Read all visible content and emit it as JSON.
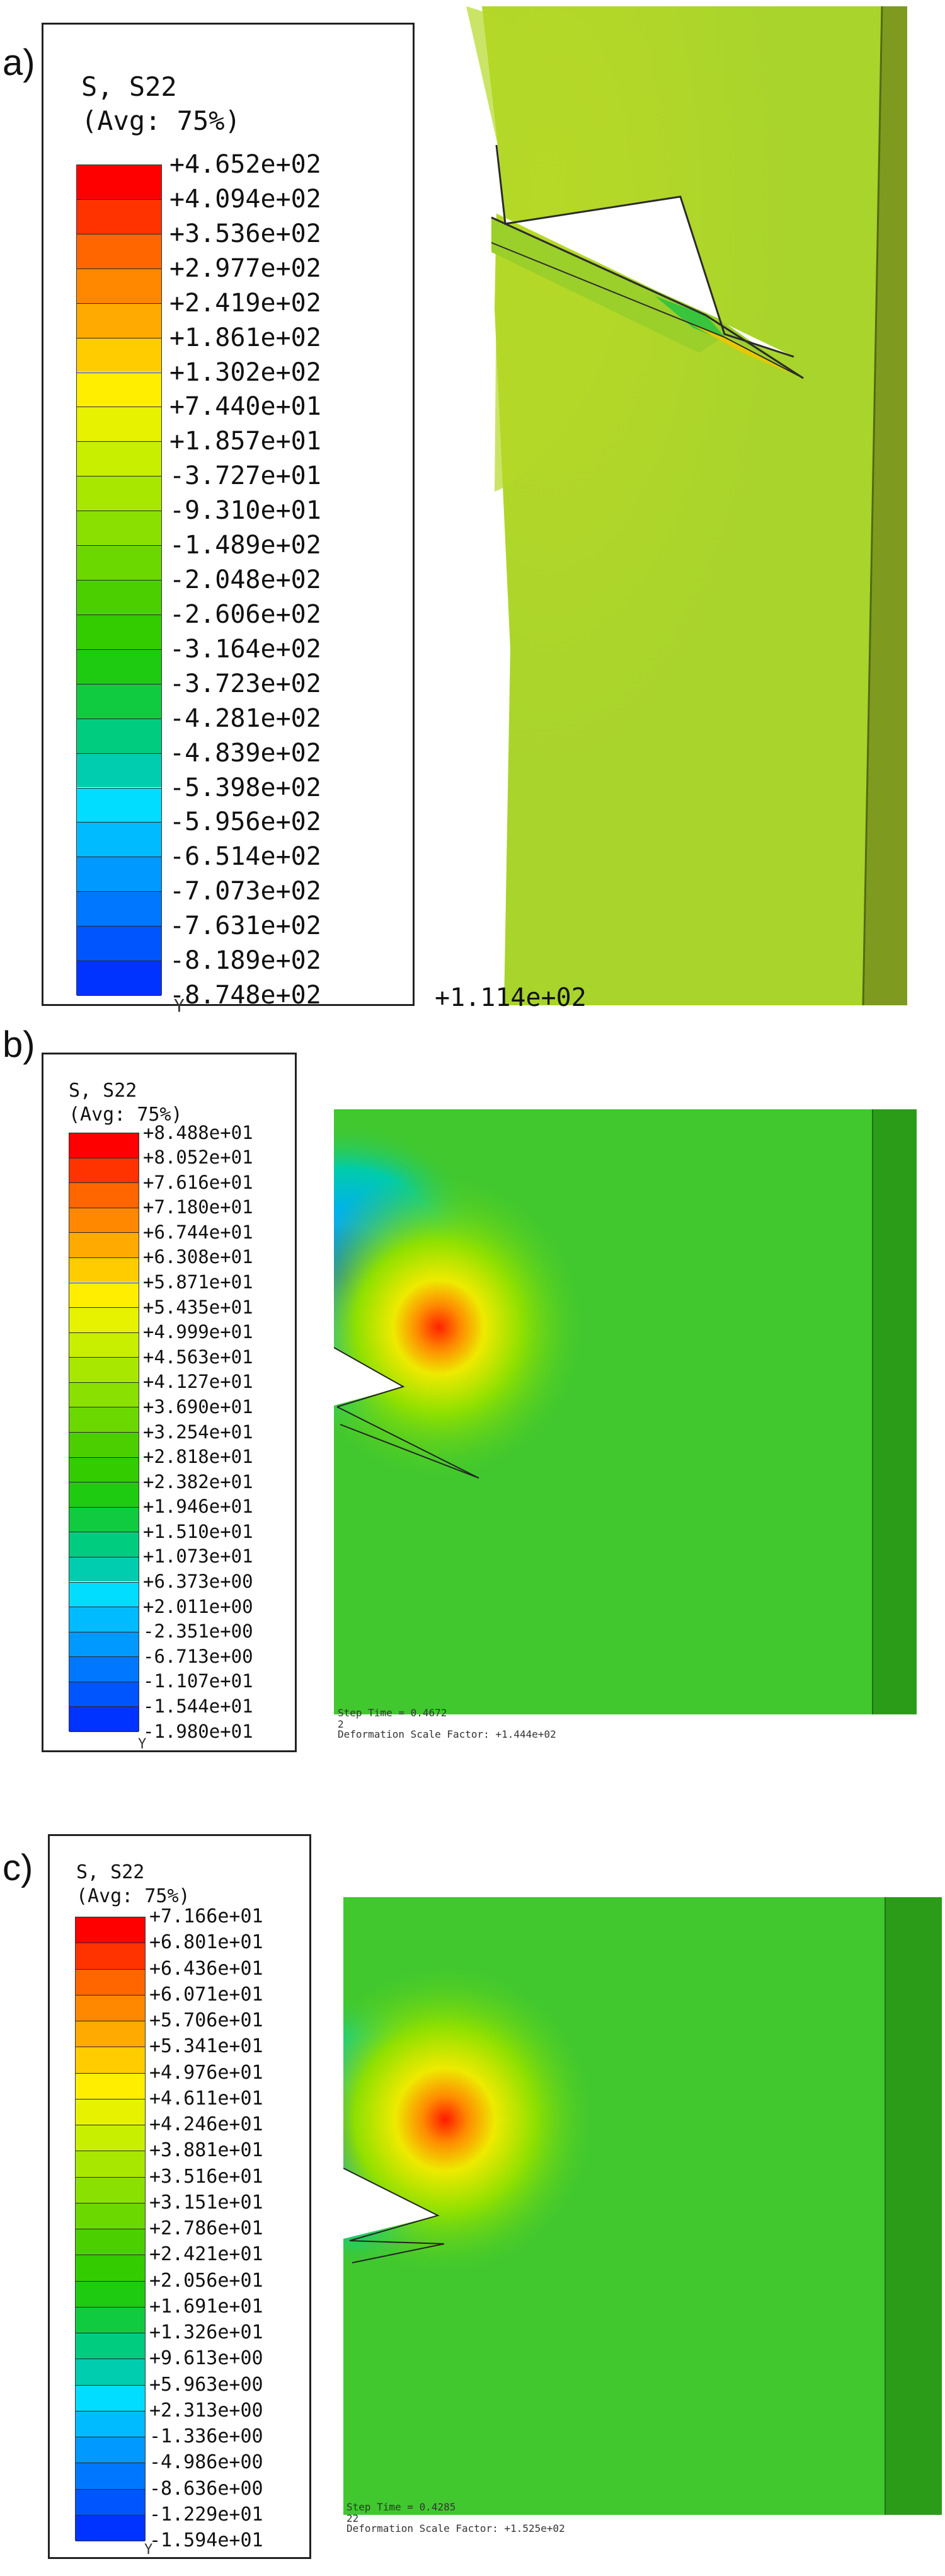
{
  "panels": [
    {
      "label": "a)",
      "legend": {
        "title": "S, S22",
        "avg": "(Avg: 75%)",
        "values": [
          "+4.652e+02",
          "+4.094e+02",
          "+3.536e+02",
          "+2.977e+02",
          "+2.419e+02",
          "+1.861e+02",
          "+1.302e+02",
          "+7.440e+01",
          "+1.857e+01",
          "-3.727e+01",
          "-9.310e+01",
          "-1.489e+02",
          "-2.048e+02",
          "-2.606e+02",
          "-3.164e+02",
          "-3.723e+02",
          "-4.281e+02",
          "-4.839e+02",
          "-5.398e+02",
          "-5.956e+02",
          "-6.514e+02",
          "-7.073e+02",
          "-7.631e+02",
          "-8.189e+02",
          "-8.748e+02"
        ],
        "axis_mark": "Y"
      },
      "bottom_value": "+1.114e+02",
      "step_time": "",
      "step_number": "",
      "scale_factor": ""
    },
    {
      "label": "b)",
      "legend": {
        "title": "S, S22",
        "avg": "(Avg: 75%)",
        "values": [
          "+8.488e+01",
          "+8.052e+01",
          "+7.616e+01",
          "+7.180e+01",
          "+6.744e+01",
          "+6.308e+01",
          "+5.871e+01",
          "+5.435e+01",
          "+4.999e+01",
          "+4.563e+01",
          "+4.127e+01",
          "+3.690e+01",
          "+3.254e+01",
          "+2.818e+01",
          "+2.382e+01",
          "+1.946e+01",
          "+1.510e+01",
          "+1.073e+01",
          "+6.373e+00",
          "+2.011e+00",
          "-2.351e+00",
          "-6.713e+00",
          "-1.107e+01",
          "-1.544e+01",
          "-1.980e+01"
        ],
        "axis_mark": "Y"
      },
      "bottom_value": "",
      "step_time": "Step Time =  0.4672",
      "step_number": "2",
      "scale_factor": "Deformation Scale Factor: +1.444e+02"
    },
    {
      "label": "c)",
      "legend": {
        "title": "S, S22",
        "avg": "(Avg: 75%)",
        "values": [
          "+7.166e+01",
          "+6.801e+01",
          "+6.436e+01",
          "+6.071e+01",
          "+5.706e+01",
          "+5.341e+01",
          "+4.976e+01",
          "+4.611e+01",
          "+4.246e+01",
          "+3.881e+01",
          "+3.516e+01",
          "+3.151e+01",
          "+2.786e+01",
          "+2.421e+01",
          "+2.056e+01",
          "+1.691e+01",
          "+1.326e+01",
          "+9.613e+00",
          "+5.963e+00",
          "+2.313e+00",
          "-1.336e+00",
          "-4.986e+00",
          "-8.636e+00",
          "-1.229e+01",
          "-1.594e+01"
        ],
        "axis_mark": "Y"
      },
      "bottom_value": "",
      "step_time": "Step Time =  0.4285",
      "step_number": "22",
      "scale_factor": "Deformation Scale Factor: +1.525e+02"
    }
  ],
  "colors": {
    "ramp": [
      "#ff0000",
      "#ff3300",
      "#ff6600",
      "#ff8800",
      "#ffaa00",
      "#ffcc00",
      "#ffee00",
      "#e6f200",
      "#c8ef00",
      "#a8e800",
      "#8ae000",
      "#6bd800",
      "#4ccf00",
      "#33cc00",
      "#1ecb10",
      "#10cb40",
      "#00cc80",
      "#00ccb0",
      "#00ddff",
      "#00bbff",
      "#0099ff",
      "#0077ff",
      "#0055ff",
      "#0033ff",
      "#0000ff"
    ],
    "model_a_base": "#a9d52b",
    "model_a_edge": "#6e8e1d",
    "model_bc_base": "#35c42e",
    "model_bc_edge": "#2a9c18"
  }
}
